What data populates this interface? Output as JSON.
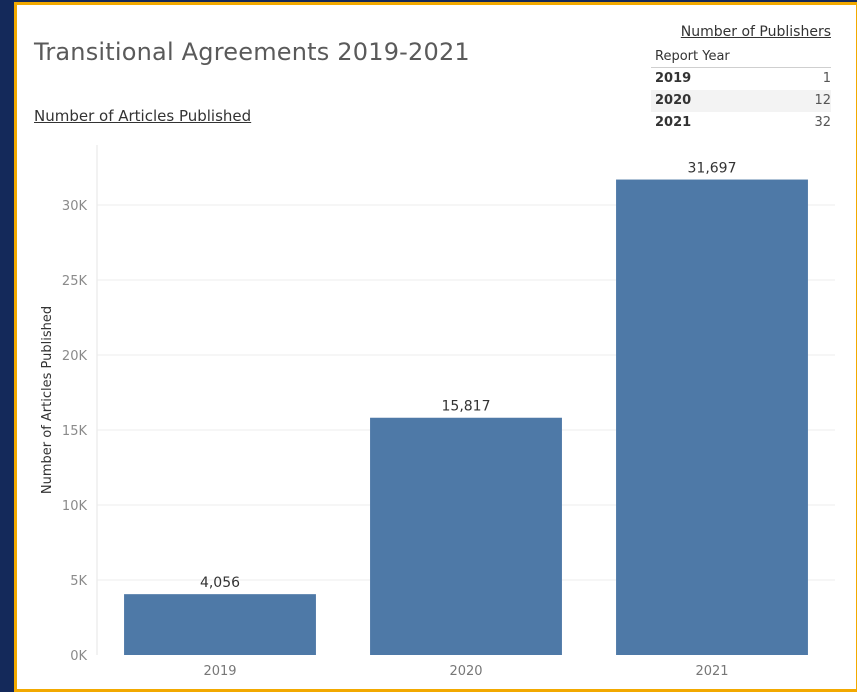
{
  "dashboard": {
    "title": "Transitional Agreements 2019-2021"
  },
  "publishers": {
    "title": "Number of Publishers",
    "column_header": "Report Year",
    "rows": [
      {
        "year": "2019",
        "count": "1"
      },
      {
        "year": "2020",
        "count": "12"
      },
      {
        "year": "2021",
        "count": "32"
      }
    ]
  },
  "colors": {
    "bar": "#4e79a7",
    "border": "#f2a900",
    "background": "#14295a"
  },
  "chart_data": {
    "type": "bar",
    "title": "Number of Articles Published",
    "xlabel": "",
    "ylabel": "Number of Articles Published",
    "categories": [
      "2019",
      "2020",
      "2021"
    ],
    "values": [
      4056,
      15817,
      31697
    ],
    "value_labels": [
      "4,056",
      "15,817",
      "31,697"
    ],
    "yticks": [
      0,
      5000,
      10000,
      15000,
      20000,
      25000,
      30000
    ],
    "ytick_labels": [
      "0K",
      "5K",
      "10K",
      "15K",
      "20K",
      "25K",
      "30K"
    ],
    "ylim": [
      0,
      34000
    ],
    "grid": true,
    "legend": "none"
  }
}
